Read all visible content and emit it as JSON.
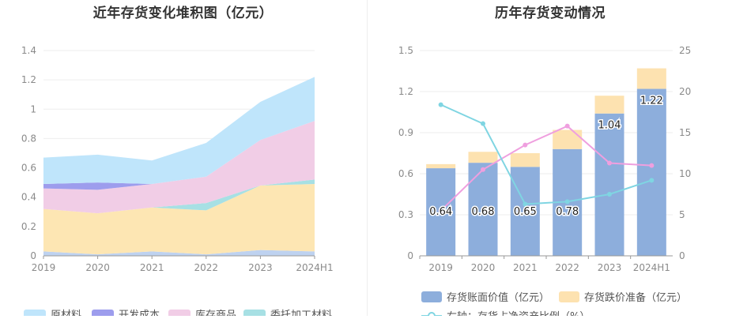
{
  "charts": {
    "left": {
      "title": "近年存货变化堆积图（亿元）",
      "x_ticks": [
        "2019",
        "2020",
        "2021",
        "2022",
        "2023",
        "2024H1"
      ],
      "y_ticks": [
        "0",
        "0.2",
        "0.4",
        "0.6",
        "0.8",
        "1",
        "1.2",
        "1.4"
      ],
      "legend": [
        "原材料",
        "开发成本",
        "库存商品",
        "委托加工材料"
      ]
    },
    "right": {
      "title": "历年存货变动情况",
      "x_ticks": [
        "2019",
        "2020",
        "2021",
        "2022",
        "2023",
        "2024H1"
      ],
      "y_left_ticks": [
        "0",
        "0.3",
        "0.6",
        "0.9",
        "1.2",
        "1.5"
      ],
      "y_right_ticks": [
        "0",
        "5",
        "10",
        "15",
        "20",
        "25"
      ],
      "bar_labels": [
        "0.64",
        "0.68",
        "0.65",
        "0.78",
        "1.04",
        "1.22"
      ],
      "legend": [
        "存货账面价值（亿元）",
        "存货跌价准备（亿元）",
        "右轴：存货占净资产比例（%）"
      ]
    }
  },
  "colors": {
    "raw_material": "#bfe5fb",
    "dev_cost": "#9d9ded",
    "inventory_goods": "#f1cde6",
    "processing": "#a7e0e4",
    "base": "#fde6b3",
    "bottom": "#bed2f0",
    "book_value": "#8daedc",
    "impairment": "#fde2b0",
    "line_pink": "#ef9fdf",
    "line_cyan": "#7fd5e2",
    "axis_text": "#8a8a8a",
    "grid": "#eeeeee"
  },
  "chart_data": [
    {
      "type": "area",
      "title": "近年存货变化堆积图（亿元）",
      "categories": [
        "2019",
        "2020",
        "2021",
        "2022",
        "2023",
        "2024H1"
      ],
      "ylim": [
        0,
        1.4
      ],
      "stacked": true,
      "series": [
        {
          "name": "",
          "values": [
            0.03,
            0.01,
            0.03,
            0.01,
            0.04,
            0.03
          ]
        },
        {
          "name": "",
          "values": [
            0.29,
            0.28,
            0.3,
            0.3,
            0.44,
            0.46
          ]
        },
        {
          "name": "委托加工材料",
          "values": [
            0.0,
            0.0,
            0.0,
            0.05,
            0.0,
            0.03
          ]
        },
        {
          "name": "库存商品",
          "values": [
            0.14,
            0.16,
            0.16,
            0.18,
            0.31,
            0.4
          ]
        },
        {
          "name": "开发成本",
          "values": [
            0.03,
            0.05,
            0.0,
            0.0,
            0.0,
            0.0
          ]
        },
        {
          "name": "原材料",
          "values": [
            0.18,
            0.19,
            0.16,
            0.23,
            0.26,
            0.3
          ]
        }
      ],
      "legend_position": "bottom",
      "grid": true
    },
    {
      "type": "bar",
      "title": "历年存货变动情况",
      "categories": [
        "2019",
        "2020",
        "2021",
        "2022",
        "2023",
        "2024H1"
      ],
      "ylim": [
        0,
        1.5
      ],
      "y2lim": [
        0,
        25
      ],
      "stacked": true,
      "series": [
        {
          "name": "存货账面价值（亿元）",
          "type": "bar",
          "axis": "left",
          "values": [
            0.64,
            0.68,
            0.65,
            0.78,
            1.04,
            1.22
          ]
        },
        {
          "name": "存货跌价准备（亿元）",
          "type": "bar",
          "axis": "left",
          "values": [
            0.03,
            0.08,
            0.1,
            0.14,
            0.13,
            0.15
          ]
        },
        {
          "name": "",
          "type": "line",
          "axis": "right",
          "values": [
            5.5,
            10.5,
            13.5,
            15.8,
            11.3,
            11.0
          ]
        },
        {
          "name": "右轴：存货占净资产比例（%）",
          "type": "line",
          "axis": "right",
          "values": [
            18.4,
            16.1,
            6.3,
            6.6,
            7.5,
            9.2
          ]
        }
      ],
      "legend_position": "bottom",
      "grid": true
    }
  ]
}
